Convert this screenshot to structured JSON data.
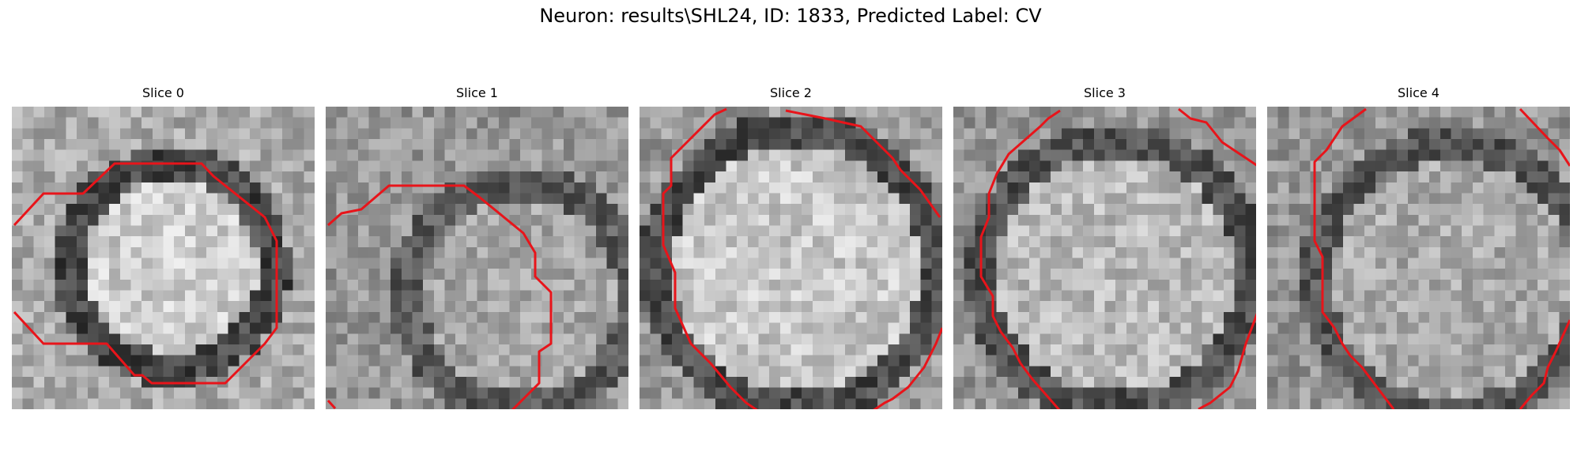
{
  "figure": {
    "title": "Neuron: results\\SHL24, ID: 1833, Predicted Label: CV"
  },
  "contour_color": "#e8141a",
  "panels": [
    {
      "title": "Slice 0",
      "blob": "round",
      "image_desc": "grayscale microscopy patch, bright cell body centered"
    },
    {
      "title": "Slice 1",
      "blob": "lower-right",
      "image_desc": "grayscale microscopy patch, dark region left"
    },
    {
      "title": "Slice 2",
      "blob": "large",
      "image_desc": "grayscale microscopy patch, large bright cell"
    },
    {
      "title": "Slice 3",
      "blob": "large",
      "image_desc": "grayscale microscopy patch, bright cell"
    },
    {
      "title": "Slice 4",
      "blob": "right",
      "image_desc": "grayscale microscopy patch, dim cell"
    }
  ]
}
